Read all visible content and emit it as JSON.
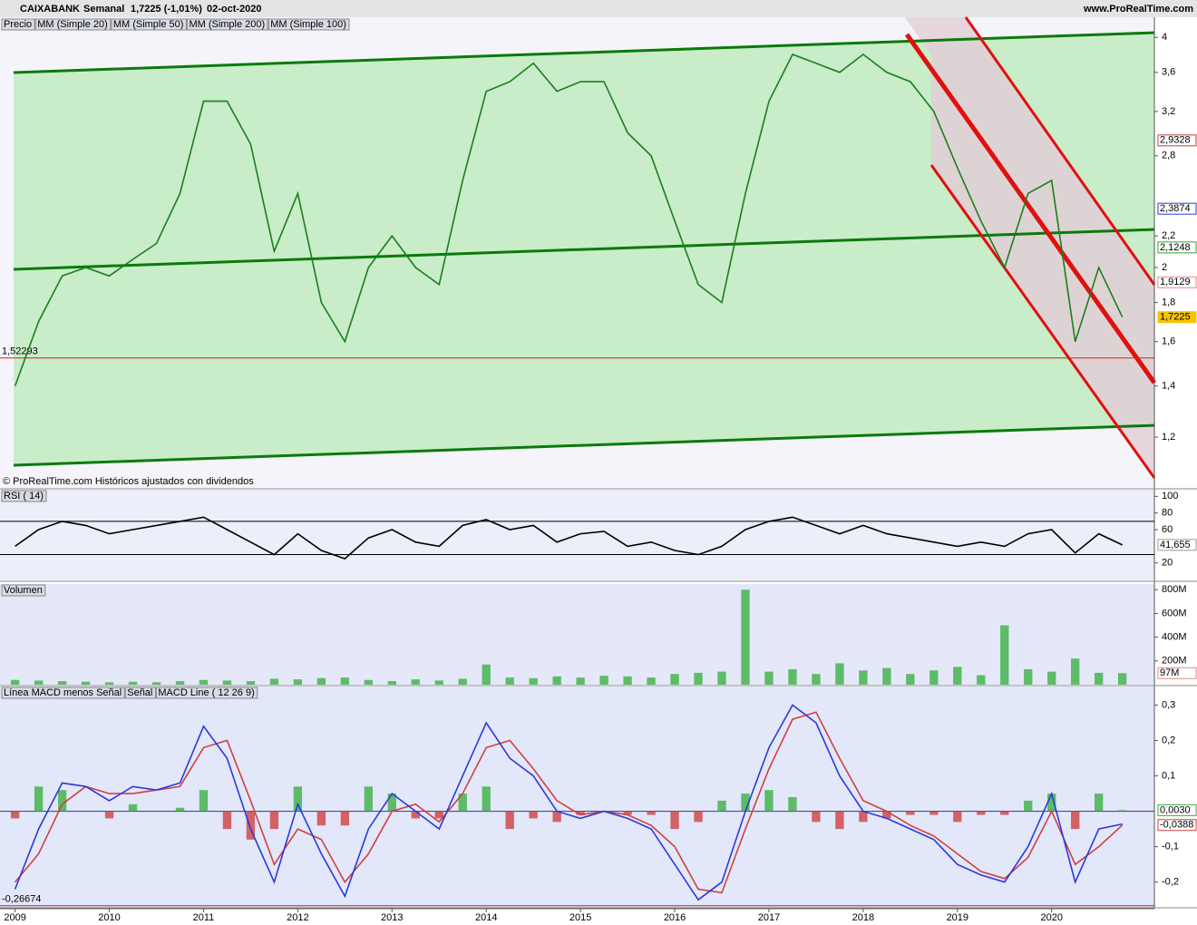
{
  "header": {
    "symbol": "CAIXABANK",
    "period": "Semanal",
    "quote": "1,7225 (-1,01%)",
    "date": "02-oct-2020",
    "site": "www.ProRealTime.com"
  },
  "footer": "© ProRealTime.com  Históricos ajustados con dividendos",
  "chart_data": [
    {
      "type": "line",
      "log": true,
      "indicators": [
        {
          "name": "Precio",
          "color": "#000000"
        },
        {
          "name": "MM (Simple 20)",
          "color": "#e08a8a"
        },
        {
          "name": "MM (Simple 50)",
          "color": "#2ea82e"
        },
        {
          "name": "MM (Simple 200)",
          "color": "#c04040"
        },
        {
          "name": "MM (Simple 100)",
          "color": "#2a3ad8"
        }
      ],
      "x": [
        2009,
        2009.25,
        2009.5,
        2009.75,
        2010,
        2010.25,
        2010.5,
        2010.75,
        2011,
        2011.25,
        2011.5,
        2011.75,
        2012,
        2012.25,
        2012.5,
        2012.75,
        2013,
        2013.25,
        2013.5,
        2013.75,
        2014,
        2014.25,
        2014.5,
        2014.75,
        2015,
        2015.25,
        2015.5,
        2015.75,
        2016,
        2016.25,
        2016.5,
        2016.75,
        2017,
        2017.25,
        2017.5,
        2017.75,
        2018,
        2018.25,
        2018.5,
        2018.75,
        2019,
        2019.25,
        2019.5,
        2019.75,
        2020,
        2020.25,
        2020.5,
        2020.75
      ],
      "series": [
        {
          "color": "#1a7f1a",
          "values": [
            1.4,
            1.7,
            1.95,
            2.0,
            1.95,
            2.05,
            2.15,
            2.5,
            3.3,
            3.3,
            2.9,
            2.1,
            2.5,
            1.8,
            1.6,
            2.0,
            2.2,
            2.0,
            1.9,
            2.6,
            3.4,
            3.5,
            3.7,
            3.4,
            3.5,
            3.5,
            3.0,
            2.8,
            2.3,
            1.9,
            1.8,
            2.5,
            3.3,
            3.8,
            3.7,
            3.6,
            3.8,
            3.6,
            3.5,
            3.2,
            2.7,
            2.3,
            2.0,
            2.5,
            2.6,
            1.6,
            2.0,
            1.7225
          ]
        }
      ],
      "xlim": [
        2008.84,
        2021.09
      ],
      "ylim": [
        1.03,
        4.25
      ],
      "yticks": [
        4,
        {
          "value": 3.6,
          "label": "3,6"
        },
        {
          "value": 3.2,
          "label": "3,2"
        },
        {
          "value": 2.8,
          "label": "2,8"
        },
        {
          "value": 2.2,
          "label": "2,2"
        },
        2,
        {
          "value": 1.8,
          "label": "1,8"
        },
        {
          "value": 1.6,
          "label": "1,6"
        },
        {
          "value": 1.4,
          "label": "1,4"
        },
        {
          "value": 1.2,
          "label": "1,2"
        }
      ],
      "hline": {
        "value": 1.52293,
        "label": "1,52293",
        "color": "#d02020"
      },
      "marker_labels": [
        {
          "value": 2.9328,
          "label": "2,9328",
          "color": "#c04040"
        },
        {
          "value": 2.3874,
          "label": "2,3874",
          "color": "#2a3ad8"
        },
        {
          "value": 2.1248,
          "label": "2,1248",
          "color": "#2ea82e"
        },
        {
          "value": 1.9129,
          "label": "1,9129",
          "color": "#e08a8a"
        },
        {
          "value": 1.7225,
          "label": "1,7225",
          "color": "#f5c400"
        }
      ]
    },
    {
      "type": "line",
      "title": "RSI ( 14)",
      "x": [
        2009,
        2009.25,
        2009.5,
        2009.75,
        2010,
        2010.25,
        2010.5,
        2010.75,
        2011,
        2011.25,
        2011.5,
        2011.75,
        2012,
        2012.25,
        2012.5,
        2012.75,
        2013,
        2013.25,
        2013.5,
        2013.75,
        2014,
        2014.25,
        2014.5,
        2014.75,
        2015,
        2015.25,
        2015.5,
        2015.75,
        2016,
        2016.25,
        2016.5,
        2016.75,
        2017,
        2017.25,
        2017.5,
        2017.75,
        2018,
        2018.25,
        2018.5,
        2018.75,
        2019,
        2019.25,
        2019.5,
        2019.75,
        2020,
        2020.25,
        2020.5,
        2020.75
      ],
      "series": [
        {
          "color": "#000000",
          "values": [
            40,
            60,
            70,
            65,
            55,
            60,
            65,
            70,
            75,
            60,
            45,
            30,
            55,
            35,
            25,
            50,
            60,
            45,
            40,
            65,
            72,
            60,
            65,
            45,
            55,
            58,
            40,
            45,
            35,
            30,
            40,
            60,
            70,
            75,
            65,
            55,
            65,
            55,
            50,
            45,
            40,
            45,
            40,
            55,
            60,
            32,
            55,
            41.655
          ]
        }
      ],
      "xlim": [
        2008.84,
        2021.09
      ],
      "ylim": [
        -1,
        108
      ],
      "yticks": [
        100,
        80,
        60,
        20
      ],
      "levels": [
        70,
        30
      ],
      "marker_labels": [
        {
          "value": 41.655,
          "label": "41,655",
          "color": "#ffffff"
        }
      ]
    },
    {
      "type": "bar",
      "title": "Volumen",
      "x": [
        2009,
        2009.25,
        2009.5,
        2009.75,
        2010,
        2010.25,
        2010.5,
        2010.75,
        2011,
        2011.25,
        2011.5,
        2011.75,
        2012,
        2012.25,
        2012.5,
        2012.75,
        2013,
        2013.25,
        2013.5,
        2013.75,
        2014,
        2014.25,
        2014.5,
        2014.75,
        2015,
        2015.25,
        2015.5,
        2015.75,
        2016,
        2016.25,
        2016.5,
        2016.75,
        2017,
        2017.25,
        2017.5,
        2017.75,
        2018,
        2018.25,
        2018.5,
        2018.75,
        2019,
        2019.25,
        2019.5,
        2019.75,
        2020,
        2020.25,
        2020.5,
        2020.75
      ],
      "series": [
        {
          "color": "#3cb043",
          "values": [
            40,
            35,
            30,
            25,
            20,
            25,
            20,
            30,
            40,
            35,
            30,
            50,
            45,
            55,
            60,
            40,
            30,
            45,
            35,
            50,
            170,
            60,
            55,
            70,
            60,
            75,
            70,
            60,
            90,
            100,
            110,
            800,
            110,
            130,
            90,
            180,
            120,
            140,
            90,
            120,
            150,
            80,
            500,
            130,
            110,
            220,
            100,
            97
          ]
        }
      ],
      "xlim": [
        2008.84,
        2021.09
      ],
      "ylim": [
        0,
        840
      ],
      "yticks": [
        {
          "value": 800,
          "label": "800M"
        },
        {
          "value": 600,
          "label": "600M"
        },
        {
          "value": 400,
          "label": "400M"
        },
        {
          "value": 200,
          "label": "200M"
        }
      ],
      "marker_labels": [
        {
          "value": 97,
          "label": "97M",
          "color": "#e08a8a"
        }
      ]
    },
    {
      "type": "line",
      "x": [
        2009,
        2009.25,
        2009.5,
        2009.75,
        2010,
        2010.25,
        2010.5,
        2010.75,
        2011,
        2011.25,
        2011.5,
        2011.75,
        2012,
        2012.25,
        2012.5,
        2012.75,
        2013,
        2013.25,
        2013.5,
        2013.75,
        2014,
        2014.25,
        2014.5,
        2014.75,
        2015,
        2015.25,
        2015.5,
        2015.75,
        2016,
        2016.25,
        2016.5,
        2016.75,
        2017,
        2017.25,
        2017.5,
        2017.75,
        2018,
        2018.25,
        2018.5,
        2018.75,
        2019,
        2019.25,
        2019.5,
        2019.75,
        2020,
        2020.25,
        2020.5,
        2020.75
      ],
      "series": [
        {
          "name": "Línea MACD menos Señal",
          "type": "bar",
          "color": "#3cb043",
          "negative_color": "#d04040",
          "values": [
            -0.02,
            0.07,
            0.06,
            0,
            -0.02,
            0.02,
            0,
            0.01,
            0.06,
            -0.05,
            -0.08,
            -0.05,
            0.07,
            -0.04,
            -0.04,
            0.07,
            0.05,
            -0.02,
            -0.02,
            0.05,
            0.07,
            -0.05,
            -0.02,
            -0.03,
            -0.01,
            0,
            -0.01,
            -0.01,
            -0.05,
            -0.03,
            0.03,
            0.05,
            0.06,
            0.04,
            -0.03,
            -0.05,
            -0.03,
            -0.02,
            -0.01,
            -0.01,
            -0.03,
            -0.01,
            -0.01,
            0.03,
            0.05,
            -0.05,
            0.05,
            0.003
          ]
        },
        {
          "name": "Señal",
          "color": "#d04040",
          "values": [
            -0.2,
            -0.12,
            0.02,
            0.07,
            0.05,
            0.05,
            0.06,
            0.07,
            0.18,
            0.2,
            0.03,
            -0.15,
            -0.05,
            -0.08,
            -0.2,
            -0.12,
            0,
            0.02,
            -0.03,
            0.05,
            0.18,
            0.2,
            0.12,
            0.03,
            -0.01,
            0,
            -0.01,
            -0.04,
            -0.1,
            -0.22,
            -0.23,
            -0.05,
            0.12,
            0.26,
            0.28,
            0.15,
            0.03,
            0,
            -0.04,
            -0.07,
            -0.12,
            -0.17,
            -0.19,
            -0.13,
            0,
            -0.15,
            -0.1,
            -0.0388
          ]
        },
        {
          "name": "MACD Line ( 12 26 9)",
          "color": "#2a3ad8",
          "values": [
            -0.22,
            -0.05,
            0.08,
            0.07,
            0.03,
            0.07,
            0.06,
            0.08,
            0.24,
            0.15,
            -0.05,
            -0.2,
            0.02,
            -0.12,
            -0.24,
            -0.05,
            0.05,
            0,
            -0.05,
            0.1,
            0.25,
            0.15,
            0.1,
            0,
            -0.02,
            0,
            -0.02,
            -0.05,
            -0.15,
            -0.25,
            -0.2,
            0,
            0.18,
            0.3,
            0.25,
            0.1,
            0,
            -0.02,
            -0.05,
            -0.08,
            -0.15,
            -0.18,
            -0.2,
            -0.1,
            0.05,
            -0.2,
            -0.05,
            -0.0358
          ]
        }
      ],
      "xlim": [
        2008.84,
        2021.09
      ],
      "ylim": [
        -0.27,
        0.35
      ],
      "yticks": [
        {
          "value": 0.3,
          "label": "0,3"
        },
        {
          "value": 0.2,
          "label": "0,2"
        },
        {
          "value": 0.1,
          "label": "0,1"
        },
        {
          "value": -0.1,
          "label": "-0,1"
        },
        {
          "value": -0.2,
          "label": "-0,2"
        }
      ],
      "xticks": [
        2009,
        2010,
        2011,
        2012,
        2013,
        2014,
        2015,
        2016,
        2017,
        2018,
        2019,
        2020
      ],
      "hline": {
        "value": -0.26674,
        "label": "-0,26674",
        "color": "#d02020"
      },
      "marker_labels": [
        {
          "value": 0.003,
          "label": "0,0030",
          "color": "#3cb043"
        },
        {
          "value": -0.0388,
          "label": "-0,0388",
          "color": "#d04040"
        }
      ]
    }
  ]
}
